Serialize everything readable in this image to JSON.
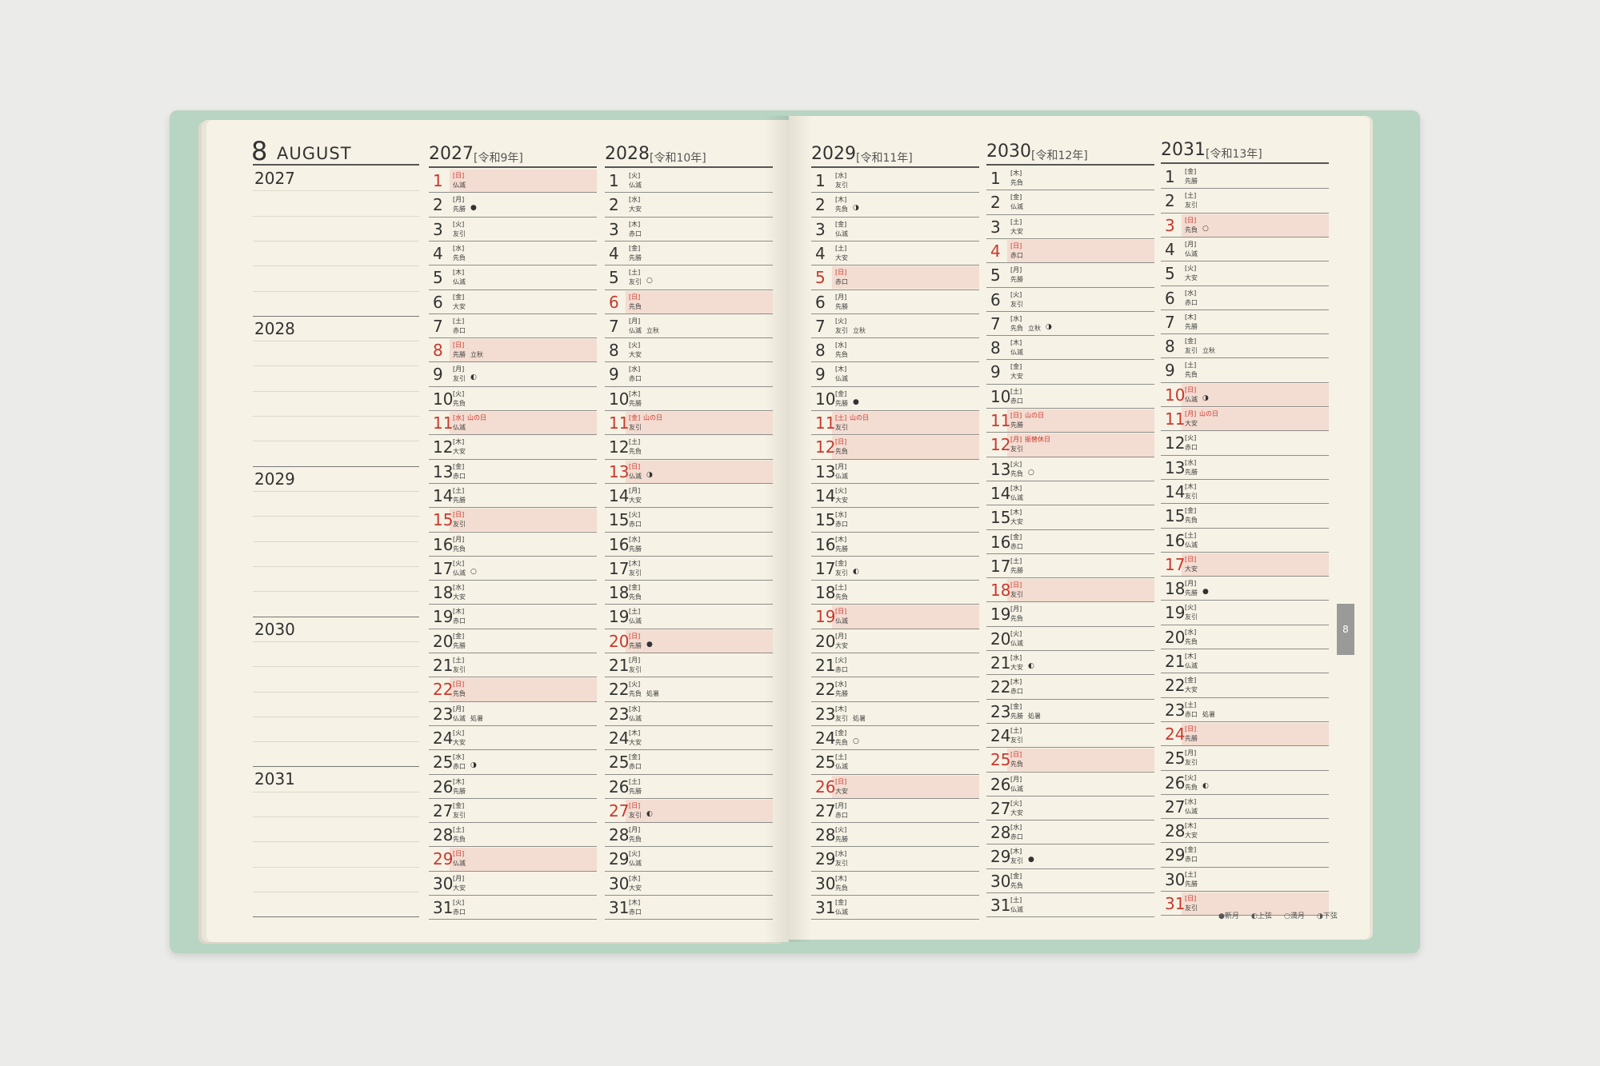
{
  "month": {
    "number": "8",
    "name": "AUGUST"
  },
  "side_years": [
    "2027",
    "2028",
    "2029",
    "2030",
    "2031"
  ],
  "tab": "8",
  "legend": [
    "●新月",
    "◐上弦",
    "○満月",
    "◑下弦"
  ],
  "years": [
    {
      "year": "2027",
      "era": "[令和9年]",
      "days": [
        {
          "day": 1,
          "wd": "[日]",
          "rk": "仏滅",
          "red": true
        },
        {
          "day": 2,
          "wd": "[月]",
          "rk": "先勝",
          "moon": "●"
        },
        {
          "day": 3,
          "wd": "[火]",
          "rk": "友引"
        },
        {
          "day": 4,
          "wd": "[水]",
          "rk": "先負"
        },
        {
          "day": 5,
          "wd": "[木]",
          "rk": "仏滅"
        },
        {
          "day": 6,
          "wd": "[金]",
          "rk": "大安"
        },
        {
          "day": 7,
          "wd": "[土]",
          "rk": "赤口"
        },
        {
          "day": 8,
          "wd": "[日]",
          "rk": "先勝",
          "note": "立秋",
          "red": true
        },
        {
          "day": 9,
          "wd": "[月]",
          "rk": "友引",
          "moon": "◐"
        },
        {
          "day": 10,
          "wd": "[火]",
          "rk": "先負"
        },
        {
          "day": 11,
          "wd": "[水]",
          "rk": "仏滅",
          "hol": "山の日",
          "red": true
        },
        {
          "day": 12,
          "wd": "[木]",
          "rk": "大安"
        },
        {
          "day": 13,
          "wd": "[金]",
          "rk": "赤口"
        },
        {
          "day": 14,
          "wd": "[土]",
          "rk": "先勝"
        },
        {
          "day": 15,
          "wd": "[日]",
          "rk": "友引",
          "red": true
        },
        {
          "day": 16,
          "wd": "[月]",
          "rk": "先負"
        },
        {
          "day": 17,
          "wd": "[火]",
          "rk": "仏滅",
          "moon": "○"
        },
        {
          "day": 18,
          "wd": "[水]",
          "rk": "大安"
        },
        {
          "day": 19,
          "wd": "[木]",
          "rk": "赤口"
        },
        {
          "day": 20,
          "wd": "[金]",
          "rk": "先勝"
        },
        {
          "day": 21,
          "wd": "[土]",
          "rk": "友引"
        },
        {
          "day": 22,
          "wd": "[日]",
          "rk": "先負",
          "red": true
        },
        {
          "day": 23,
          "wd": "[月]",
          "rk": "仏滅",
          "note": "処暑"
        },
        {
          "day": 24,
          "wd": "[火]",
          "rk": "大安"
        },
        {
          "day": 25,
          "wd": "[水]",
          "rk": "赤口",
          "moon": "◑"
        },
        {
          "day": 26,
          "wd": "[木]",
          "rk": "先勝"
        },
        {
          "day": 27,
          "wd": "[金]",
          "rk": "友引"
        },
        {
          "day": 28,
          "wd": "[土]",
          "rk": "先負"
        },
        {
          "day": 29,
          "wd": "[日]",
          "rk": "仏滅",
          "red": true
        },
        {
          "day": 30,
          "wd": "[月]",
          "rk": "大安"
        },
        {
          "day": 31,
          "wd": "[火]",
          "rk": "赤口"
        }
      ]
    },
    {
      "year": "2028",
      "era": "[令和10年]",
      "days": [
        {
          "day": 1,
          "wd": "[火]",
          "rk": "仏滅"
        },
        {
          "day": 2,
          "wd": "[水]",
          "rk": "大安"
        },
        {
          "day": 3,
          "wd": "[木]",
          "rk": "赤口"
        },
        {
          "day": 4,
          "wd": "[金]",
          "rk": "先勝"
        },
        {
          "day": 5,
          "wd": "[土]",
          "rk": "友引",
          "moon": "○"
        },
        {
          "day": 6,
          "wd": "[日]",
          "rk": "先負",
          "red": true
        },
        {
          "day": 7,
          "wd": "[月]",
          "rk": "仏滅",
          "note": "立秋"
        },
        {
          "day": 8,
          "wd": "[火]",
          "rk": "大安"
        },
        {
          "day": 9,
          "wd": "[水]",
          "rk": "赤口"
        },
        {
          "day": 10,
          "wd": "[木]",
          "rk": "先勝"
        },
        {
          "day": 11,
          "wd": "[金]",
          "rk": "友引",
          "hol": "山の日",
          "red": true
        },
        {
          "day": 12,
          "wd": "[土]",
          "rk": "先負"
        },
        {
          "day": 13,
          "wd": "[日]",
          "rk": "仏滅",
          "moon": "◑",
          "red": true
        },
        {
          "day": 14,
          "wd": "[月]",
          "rk": "大安"
        },
        {
          "day": 15,
          "wd": "[火]",
          "rk": "赤口"
        },
        {
          "day": 16,
          "wd": "[水]",
          "rk": "先勝"
        },
        {
          "day": 17,
          "wd": "[木]",
          "rk": "友引"
        },
        {
          "day": 18,
          "wd": "[金]",
          "rk": "先負"
        },
        {
          "day": 19,
          "wd": "[土]",
          "rk": "仏滅"
        },
        {
          "day": 20,
          "wd": "[日]",
          "rk": "先勝",
          "moon": "●",
          "red": true
        },
        {
          "day": 21,
          "wd": "[月]",
          "rk": "友引"
        },
        {
          "day": 22,
          "wd": "[火]",
          "rk": "先負",
          "note": "処暑"
        },
        {
          "day": 23,
          "wd": "[水]",
          "rk": "仏滅"
        },
        {
          "day": 24,
          "wd": "[木]",
          "rk": "大安"
        },
        {
          "day": 25,
          "wd": "[金]",
          "rk": "赤口"
        },
        {
          "day": 26,
          "wd": "[土]",
          "rk": "先勝"
        },
        {
          "day": 27,
          "wd": "[日]",
          "rk": "友引",
          "moon": "◐",
          "red": true
        },
        {
          "day": 28,
          "wd": "[月]",
          "rk": "先負"
        },
        {
          "day": 29,
          "wd": "[火]",
          "rk": "仏滅"
        },
        {
          "day": 30,
          "wd": "[水]",
          "rk": "大安"
        },
        {
          "day": 31,
          "wd": "[木]",
          "rk": "赤口"
        }
      ]
    },
    {
      "year": "2029",
      "era": "[令和11年]",
      "days": [
        {
          "day": 1,
          "wd": "[水]",
          "rk": "友引"
        },
        {
          "day": 2,
          "wd": "[木]",
          "rk": "先負",
          "moon": "◑"
        },
        {
          "day": 3,
          "wd": "[金]",
          "rk": "仏滅"
        },
        {
          "day": 4,
          "wd": "[土]",
          "rk": "大安"
        },
        {
          "day": 5,
          "wd": "[日]",
          "rk": "赤口",
          "red": true
        },
        {
          "day": 6,
          "wd": "[月]",
          "rk": "先勝"
        },
        {
          "day": 7,
          "wd": "[火]",
          "rk": "友引",
          "note": "立秋"
        },
        {
          "day": 8,
          "wd": "[水]",
          "rk": "先負"
        },
        {
          "day": 9,
          "wd": "[木]",
          "rk": "仏滅"
        },
        {
          "day": 10,
          "wd": "[金]",
          "rk": "先勝",
          "moon": "●"
        },
        {
          "day": 11,
          "wd": "[土]",
          "rk": "友引",
          "hol": "山の日",
          "red": true
        },
        {
          "day": 12,
          "wd": "[日]",
          "rk": "先負",
          "red": true
        },
        {
          "day": 13,
          "wd": "[月]",
          "rk": "仏滅"
        },
        {
          "day": 14,
          "wd": "[火]",
          "rk": "大安"
        },
        {
          "day": 15,
          "wd": "[水]",
          "rk": "赤口"
        },
        {
          "day": 16,
          "wd": "[木]",
          "rk": "先勝"
        },
        {
          "day": 17,
          "wd": "[金]",
          "rk": "友引",
          "moon": "◐"
        },
        {
          "day": 18,
          "wd": "[土]",
          "rk": "先負"
        },
        {
          "day": 19,
          "wd": "[日]",
          "rk": "仏滅",
          "red": true
        },
        {
          "day": 20,
          "wd": "[月]",
          "rk": "大安"
        },
        {
          "day": 21,
          "wd": "[火]",
          "rk": "赤口"
        },
        {
          "day": 22,
          "wd": "[水]",
          "rk": "先勝"
        },
        {
          "day": 23,
          "wd": "[木]",
          "rk": "友引",
          "note": "処暑"
        },
        {
          "day": 24,
          "wd": "[金]",
          "rk": "先負",
          "moon": "○"
        },
        {
          "day": 25,
          "wd": "[土]",
          "rk": "仏滅"
        },
        {
          "day": 26,
          "wd": "[日]",
          "rk": "大安",
          "red": true
        },
        {
          "day": 27,
          "wd": "[月]",
          "rk": "赤口"
        },
        {
          "day": 28,
          "wd": "[火]",
          "rk": "先勝"
        },
        {
          "day": 29,
          "wd": "[水]",
          "rk": "友引"
        },
        {
          "day": 30,
          "wd": "[木]",
          "rk": "先負"
        },
        {
          "day": 31,
          "wd": "[金]",
          "rk": "仏滅"
        }
      ]
    },
    {
      "year": "2030",
      "era": "[令和12年]",
      "days": [
        {
          "day": 1,
          "wd": "[木]",
          "rk": "先負"
        },
        {
          "day": 2,
          "wd": "[金]",
          "rk": "仏滅"
        },
        {
          "day": 3,
          "wd": "[土]",
          "rk": "大安"
        },
        {
          "day": 4,
          "wd": "[日]",
          "rk": "赤口",
          "red": true
        },
        {
          "day": 5,
          "wd": "[月]",
          "rk": "先勝"
        },
        {
          "day": 6,
          "wd": "[火]",
          "rk": "友引"
        },
        {
          "day": 7,
          "wd": "[水]",
          "rk": "先負",
          "note": "立秋",
          "moon": "◑"
        },
        {
          "day": 8,
          "wd": "[木]",
          "rk": "仏滅"
        },
        {
          "day": 9,
          "wd": "[金]",
          "rk": "大安"
        },
        {
          "day": 10,
          "wd": "[土]",
          "rk": "赤口"
        },
        {
          "day": 11,
          "wd": "[日]",
          "rk": "先勝",
          "hol": "山の日",
          "red": true
        },
        {
          "day": 12,
          "wd": "[月]",
          "rk": "友引",
          "hol": "振替休日",
          "red": true
        },
        {
          "day": 13,
          "wd": "[火]",
          "rk": "先負",
          "moon": "○"
        },
        {
          "day": 14,
          "wd": "[水]",
          "rk": "仏滅"
        },
        {
          "day": 15,
          "wd": "[木]",
          "rk": "大安"
        },
        {
          "day": 16,
          "wd": "[金]",
          "rk": "赤口"
        },
        {
          "day": 17,
          "wd": "[土]",
          "rk": "先勝"
        },
        {
          "day": 18,
          "wd": "[日]",
          "rk": "友引",
          "red": true
        },
        {
          "day": 19,
          "wd": "[月]",
          "rk": "先負"
        },
        {
          "day": 20,
          "wd": "[火]",
          "rk": "仏滅"
        },
        {
          "day": 21,
          "wd": "[水]",
          "rk": "大安",
          "moon": "◐"
        },
        {
          "day": 22,
          "wd": "[木]",
          "rk": "赤口"
        },
        {
          "day": 23,
          "wd": "[金]",
          "rk": "先勝",
          "note": "処暑"
        },
        {
          "day": 24,
          "wd": "[土]",
          "rk": "友引"
        },
        {
          "day": 25,
          "wd": "[日]",
          "rk": "先負",
          "red": true
        },
        {
          "day": 26,
          "wd": "[月]",
          "rk": "仏滅"
        },
        {
          "day": 27,
          "wd": "[火]",
          "rk": "大安"
        },
        {
          "day": 28,
          "wd": "[水]",
          "rk": "赤口"
        },
        {
          "day": 29,
          "wd": "[木]",
          "rk": "友引",
          "moon": "●"
        },
        {
          "day": 30,
          "wd": "[金]",
          "rk": "先負"
        },
        {
          "day": 31,
          "wd": "[土]",
          "rk": "仏滅"
        }
      ]
    },
    {
      "year": "2031",
      "era": "[令和13年]",
      "days": [
        {
          "day": 1,
          "wd": "[金]",
          "rk": "先勝"
        },
        {
          "day": 2,
          "wd": "[土]",
          "rk": "友引"
        },
        {
          "day": 3,
          "wd": "[日]",
          "rk": "先負",
          "moon": "○",
          "red": true
        },
        {
          "day": 4,
          "wd": "[月]",
          "rk": "仏滅"
        },
        {
          "day": 5,
          "wd": "[火]",
          "rk": "大安"
        },
        {
          "day": 6,
          "wd": "[水]",
          "rk": "赤口"
        },
        {
          "day": 7,
          "wd": "[木]",
          "rk": "先勝"
        },
        {
          "day": 8,
          "wd": "[金]",
          "rk": "友引",
          "note": "立秋"
        },
        {
          "day": 9,
          "wd": "[土]",
          "rk": "先負"
        },
        {
          "day": 10,
          "wd": "[日]",
          "rk": "仏滅",
          "moon": "◑",
          "red": true
        },
        {
          "day": 11,
          "wd": "[月]",
          "rk": "大安",
          "hol": "山の日",
          "red": true
        },
        {
          "day": 12,
          "wd": "[火]",
          "rk": "赤口"
        },
        {
          "day": 13,
          "wd": "[水]",
          "rk": "先勝"
        },
        {
          "day": 14,
          "wd": "[木]",
          "rk": "友引"
        },
        {
          "day": 15,
          "wd": "[金]",
          "rk": "先負"
        },
        {
          "day": 16,
          "wd": "[土]",
          "rk": "仏滅"
        },
        {
          "day": 17,
          "wd": "[日]",
          "rk": "大安",
          "red": true
        },
        {
          "day": 18,
          "wd": "[月]",
          "rk": "先勝",
          "moon": "●"
        },
        {
          "day": 19,
          "wd": "[火]",
          "rk": "友引"
        },
        {
          "day": 20,
          "wd": "[水]",
          "rk": "先負"
        },
        {
          "day": 21,
          "wd": "[木]",
          "rk": "仏滅"
        },
        {
          "day": 22,
          "wd": "[金]",
          "rk": "大安"
        },
        {
          "day": 23,
          "wd": "[土]",
          "rk": "赤口",
          "note": "処暑"
        },
        {
          "day": 24,
          "wd": "[日]",
          "rk": "先勝",
          "red": true
        },
        {
          "day": 25,
          "wd": "[月]",
          "rk": "友引"
        },
        {
          "day": 26,
          "wd": "[火]",
          "rk": "先負",
          "moon": "◐"
        },
        {
          "day": 27,
          "wd": "[水]",
          "rk": "仏滅"
        },
        {
          "day": 28,
          "wd": "[木]",
          "rk": "大安"
        },
        {
          "day": 29,
          "wd": "[金]",
          "rk": "赤口"
        },
        {
          "day": 30,
          "wd": "[土]",
          "rk": "先勝"
        },
        {
          "day": 31,
          "wd": "[日]",
          "rk": "友引",
          "red": true
        }
      ]
    }
  ]
}
